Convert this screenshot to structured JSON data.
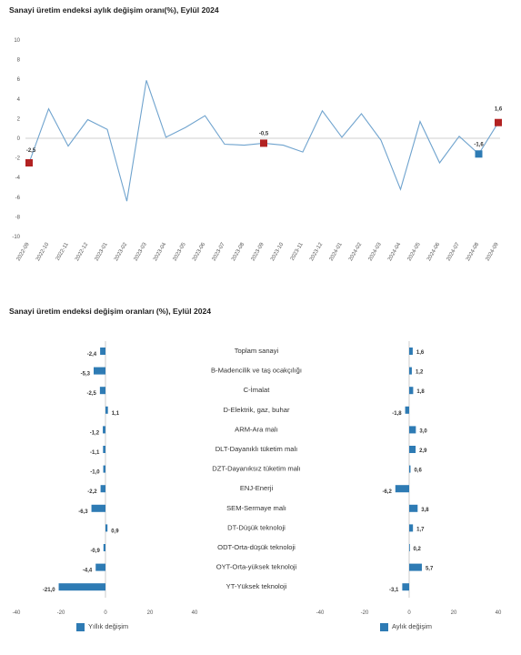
{
  "colors": {
    "line": "#6FA3CE",
    "bar": "#2E7BB4",
    "marker_red": "#B22222",
    "marker_blue": "#2E7BB4",
    "grid": "#D9D9D9",
    "axis": "#BFBFBF"
  },
  "chart_data": [
    {
      "type": "line",
      "title": "Sanayi üretim endeksi aylık değişim oranı(%), Eylül 2024",
      "categories": [
        "2022-09",
        "2022-10",
        "2022-11",
        "2022-12",
        "2023-01",
        "2023-02",
        "2023-03",
        "2023-04",
        "2023-05",
        "2023-06",
        "2023-07",
        "2023-08",
        "2023-09",
        "2023-10",
        "2023-11",
        "2023-12",
        "2024-01",
        "2024-02",
        "2024-03",
        "2024-04",
        "2024-05",
        "2024-06",
        "2024-07",
        "2024-08",
        "2024-09"
      ],
      "values": [
        -2.5,
        3.0,
        -0.8,
        1.9,
        0.9,
        -6.4,
        5.9,
        0.1,
        1.1,
        2.3,
        -0.6,
        -0.7,
        -0.5,
        -0.7,
        -1.4,
        2.8,
        0.1,
        2.5,
        -0.2,
        -5.2,
        1.7,
        -2.5,
        0.2,
        -1.6,
        1.6
      ],
      "ylim": [
        -10,
        10
      ],
      "yticks": [
        "-10",
        "-8",
        "-6",
        "-4",
        "-2",
        "0",
        "2",
        "4",
        "6",
        "8",
        "10"
      ],
      "grid": false,
      "highlights": [
        {
          "index": 0,
          "label": "-2,5",
          "color": "red"
        },
        {
          "index": 12,
          "label": "-0,5",
          "color": "red"
        },
        {
          "index": 23,
          "label": "-1,6",
          "color": "blue"
        },
        {
          "index": 24,
          "label": "1,6",
          "color": "red"
        }
      ]
    },
    {
      "type": "bar",
      "orientation": "horizontal",
      "title": "Sanayi üretim endeksi değişim oranları (%), Eylül 2024",
      "categories": [
        "Toplam sanayi",
        "B-Madencilik ve taş ocakçılığı",
        "C-İmalat",
        "D-Elektrik, gaz, buhar",
        "ARM-Ara malı",
        "DLT-Dayanıklı tüketim malı",
        "DZT-Dayanıksız tüketim malı",
        "ENJ-Enerji",
        "SEM-Sermaye malı",
        "DT-Düşük teknoloji",
        "ODT-Orta-düşük teknoloji",
        "OYT-Orta-yüksek teknoloji",
        "YT-Yüksek teknoloji"
      ],
      "series": [
        {
          "name": "Yıllık değişim",
          "values": [
            -2.4,
            -5.3,
            -2.5,
            1.1,
            -1.2,
            -1.1,
            -1.0,
            -2.2,
            -6.3,
            0.9,
            -0.9,
            -4.4,
            -21.0
          ],
          "labels": [
            "-2,4",
            "-5,3",
            "-2,5",
            "1,1",
            "-1,2",
            "-1,1",
            "-1,0",
            "-2,2",
            "-6,3",
            "0,9",
            "-0,9",
            "-4,4",
            "-21,0"
          ]
        },
        {
          "name": "Aylık değişim",
          "values": [
            1.6,
            1.2,
            1.8,
            -1.8,
            3.0,
            2.9,
            0.6,
            -6.2,
            3.8,
            1.7,
            0.2,
            5.7,
            -3.1
          ],
          "labels": [
            "1,6",
            "1,2",
            "1,8",
            "-1,8",
            "3,0",
            "2,9",
            "0,6",
            "-6,2",
            "3,8",
            "1,7",
            "0,2",
            "5,7",
            "-3,1"
          ]
        }
      ],
      "xlim": [
        -40,
        40
      ],
      "xticks": [
        "-40",
        "-20",
        "0",
        "20",
        "40"
      ],
      "legend": "bottom"
    }
  ]
}
